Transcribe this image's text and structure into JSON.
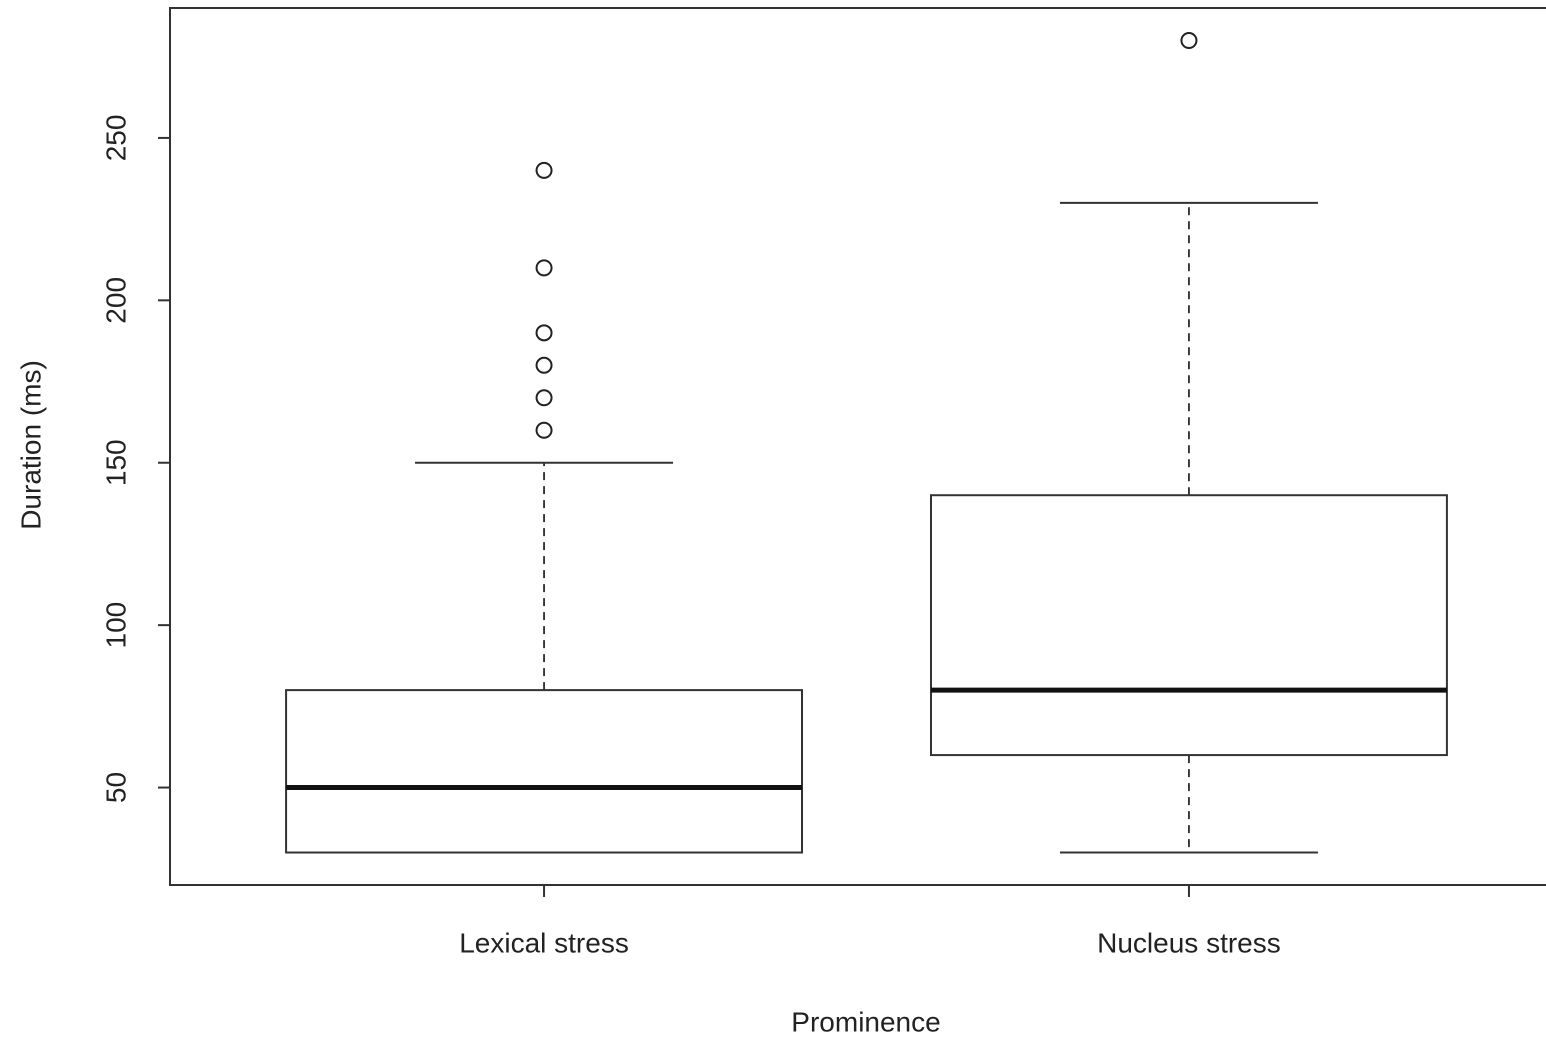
{
  "chart_data": {
    "type": "boxplot",
    "x_label": "Prominence",
    "y_label": "Duration (ms)",
    "categories": [
      "Lexical stress",
      "Nucleus stress"
    ],
    "boxes": [
      {
        "whisker_low": 30,
        "q1": 30,
        "median": 50,
        "q3": 80,
        "whisker_high": 150,
        "outliers": [
          160,
          170,
          180,
          190,
          210,
          240
        ]
      },
      {
        "whisker_low": 30,
        "q1": 60,
        "median": 80,
        "q3": 140,
        "whisker_high": 230,
        "outliers": [
          280
        ]
      }
    ],
    "color": "#000000",
    "ylim": [
      20,
      290
    ],
    "yticks": [
      50,
      100,
      150,
      200,
      250
    ]
  }
}
